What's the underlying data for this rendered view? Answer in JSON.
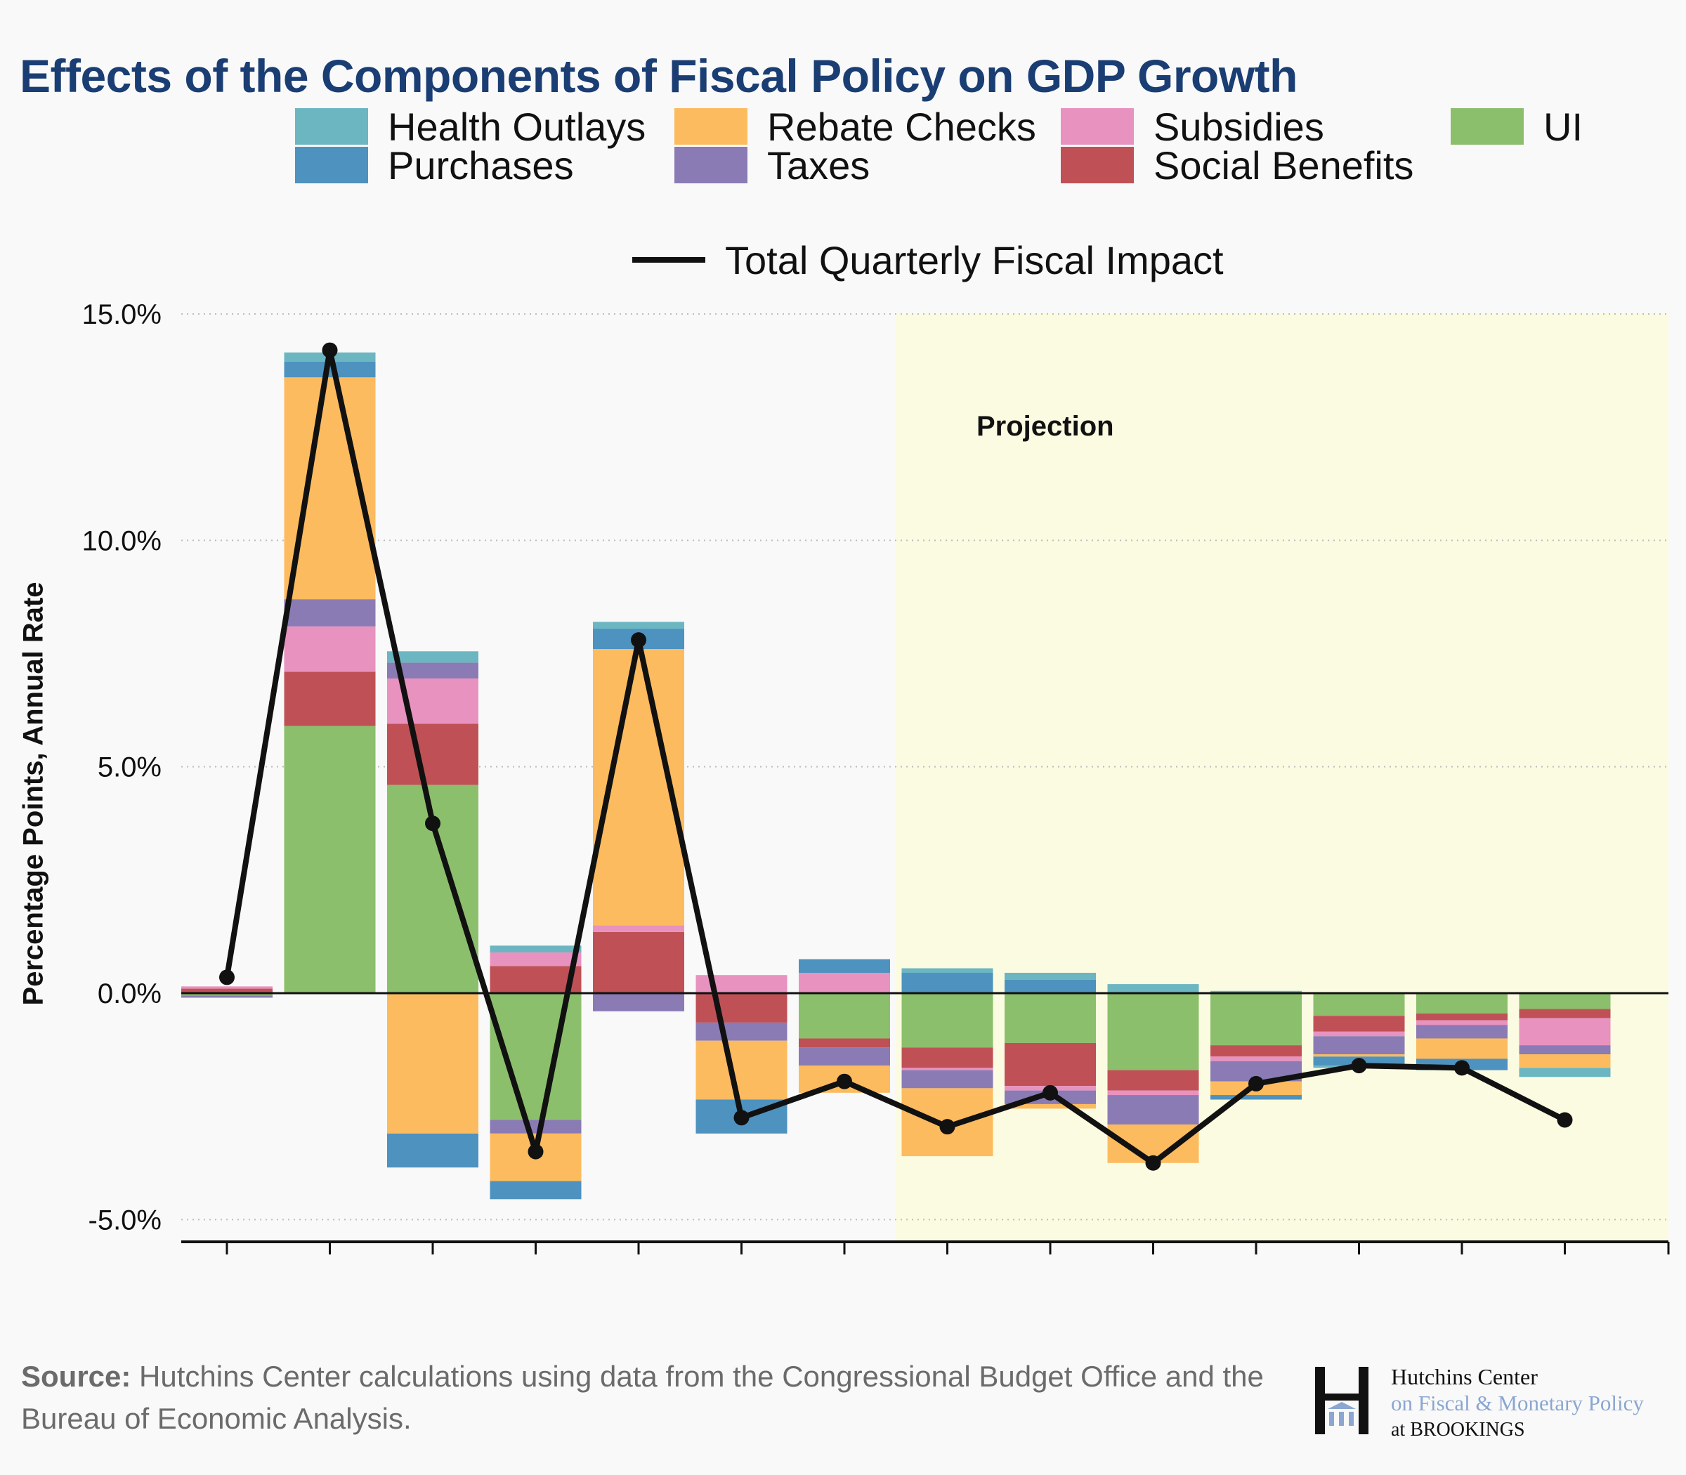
{
  "title": "Effects of the Components of Fiscal Policy on GDP Growth",
  "legend": [
    {
      "label": "Health Outlays",
      "color": "#6bb6c1"
    },
    {
      "label": "Purchases",
      "color": "#4e92bf"
    },
    {
      "label": "Rebate Checks",
      "color": "#fdbb5f"
    },
    {
      "label": "Taxes",
      "color": "#8a7bb5"
    },
    {
      "label": "Subsidies",
      "color": "#e892c0"
    },
    {
      "label": "Social Benefits",
      "color": "#bf5156"
    },
    {
      "label": "UI",
      "color": "#8cbf6c"
    }
  ],
  "line_legend": {
    "label": "Total Quarterly Fiscal Impact",
    "color": "#111111"
  },
  "projection_label": "Projection",
  "y_axis_title": "Percentage Points, Annual Rate",
  "source": {
    "prefix": "Source:",
    "text": "Hutchins Center calculations using data from the Congressional Budget Office and the Bureau of Economic Analysis."
  },
  "logo": {
    "line1": "Hutchins Center",
    "line2": "on Fiscal & Monetary Policy",
    "line3": "at BROOKINGS"
  },
  "chart_data": {
    "type": "bar",
    "stacked": true,
    "categories": [
      "",
      "",
      "",
      "",
      "",
      "",
      "",
      "",
      "",
      "",
      "",
      "",
      "",
      ""
    ],
    "ylim": [
      -5.5,
      15
    ],
    "yticks": [
      15,
      10,
      5,
      0,
      -5
    ],
    "ytick_labels": [
      "15.0%",
      "10.0%",
      "5.0%",
      "0.0%",
      "-5.0%"
    ],
    "grid": true,
    "legend_position": "top",
    "projection_start_index": 7,
    "series_order": [
      "UI",
      "Social Benefits",
      "Subsidies",
      "Taxes",
      "Rebate Checks",
      "Purchases",
      "Health Outlays"
    ],
    "series": [
      {
        "name": "Health Outlays",
        "color": "#6bb6c1",
        "values": [
          0,
          0.2,
          0.25,
          0.15,
          0.15,
          0,
          0,
          0.1,
          0.15,
          0.2,
          0.05,
          -0.05,
          0,
          -0.2
        ]
      },
      {
        "name": "Purchases",
        "color": "#4e92bf",
        "values": [
          0,
          0.35,
          -0.75,
          -0.4,
          0.45,
          -0.75,
          0.3,
          0.45,
          0.3,
          0,
          -0.1,
          -0.2,
          -0.25,
          0
        ]
      },
      {
        "name": "Rebate Checks",
        "color": "#fdbb5f",
        "values": [
          0,
          4.9,
          -3.1,
          -1.05,
          6.1,
          -1.3,
          -0.6,
          -1.5,
          -0.1,
          -0.85,
          -0.3,
          -0.05,
          -0.45,
          -0.3
        ]
      },
      {
        "name": "Taxes",
        "color": "#8a7bb5",
        "values": [
          -0.05,
          0.6,
          0.35,
          -0.3,
          -0.4,
          -0.4,
          -0.4,
          -0.4,
          -0.3,
          -0.65,
          -0.45,
          -0.4,
          -0.3,
          -0.2
        ]
      },
      {
        "name": "Subsidies",
        "color": "#e892c0",
        "values": [
          0.05,
          1.0,
          1.0,
          0.3,
          0.15,
          0.4,
          0.45,
          -0.05,
          -0.1,
          -0.1,
          -0.1,
          -0.1,
          -0.1,
          -0.6
        ]
      },
      {
        "name": "Social Benefits",
        "color": "#bf5156",
        "values": [
          0.1,
          1.2,
          1.35,
          0.6,
          1.35,
          -0.65,
          -0.2,
          -0.45,
          -0.95,
          -0.45,
          -0.25,
          -0.35,
          -0.15,
          -0.2
        ]
      },
      {
        "name": "UI",
        "color": "#8cbf6c",
        "values": [
          -0.05,
          5.9,
          4.6,
          -2.8,
          0,
          0,
          -1.0,
          -1.2,
          -1.1,
          -1.7,
          -1.15,
          -0.5,
          -0.45,
          -0.35
        ]
      }
    ],
    "line": {
      "name": "Total Quarterly Fiscal Impact",
      "values": [
        0.35,
        14.2,
        3.75,
        -3.5,
        7.8,
        -2.75,
        -1.95,
        -2.95,
        -2.2,
        -3.75,
        -2.0,
        -1.6,
        -1.65,
        -2.8
      ]
    },
    "annotations": [
      "Projection"
    ]
  }
}
